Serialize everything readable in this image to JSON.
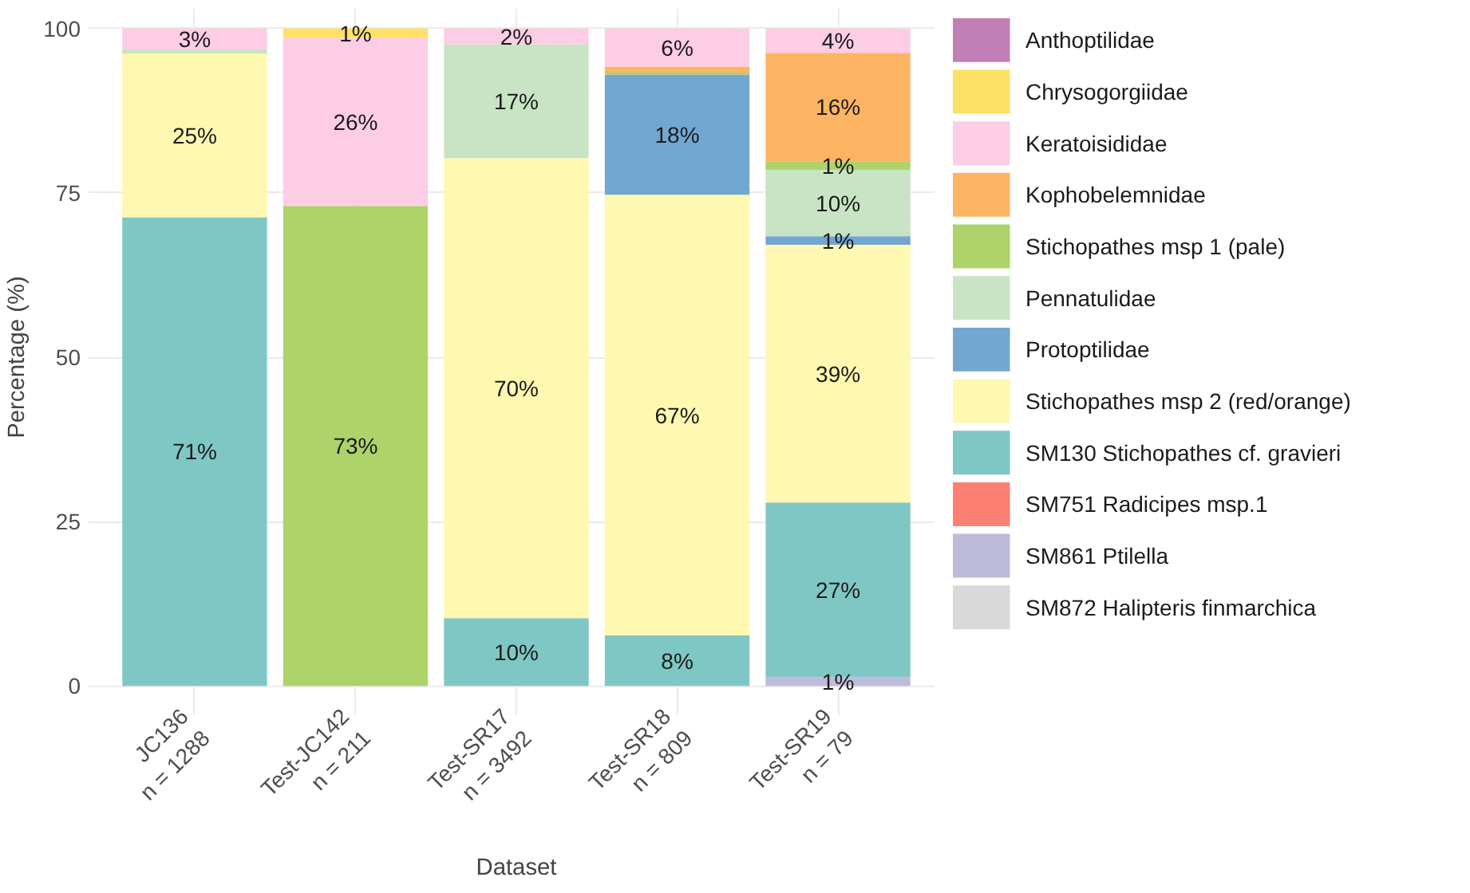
{
  "chart_data": {
    "type": "bar",
    "stacked": true,
    "xlabel": "Dataset",
    "ylabel": "Percentage (%)",
    "categories": [
      "JC136\nn = 1288",
      "Test-JC142\nn = 211",
      "Test-SR17\nn = 3492",
      "Test-SR18\nn = 809",
      "Test-SR19\nn = 79"
    ],
    "ylim": [
      -3,
      103
    ],
    "yticks": [
      0,
      25,
      50,
      75,
      100
    ],
    "grid": true,
    "legend": "right",
    "series": [
      {
        "name": "SM872 Halipteris finmarchica",
        "color": "#d9d9d9",
        "values": [
          null,
          null,
          null,
          null,
          null
        ]
      },
      {
        "name": "SM861 Ptilella",
        "color": "#bebada",
        "values": [
          null,
          null,
          null,
          null,
          1.3
        ],
        "value_labels": [
          null,
          null,
          null,
          null,
          "1%"
        ]
      },
      {
        "name": "SM751 Radicipes msp.1",
        "color": "#fb8072",
        "values": [
          null,
          null,
          null,
          null,
          null
        ]
      },
      {
        "name": "SM130 Stichopathes cf. gravieri",
        "color": "#7fc7c4",
        "values": [
          71.3,
          null,
          10.3,
          7.7,
          26.6
        ],
        "value_labels": [
          "71%",
          null,
          "10%",
          "8%",
          "27%"
        ]
      },
      {
        "name": "Stichopathes msp 2 (red/orange)",
        "color": "#fff8b0",
        "values": [
          24.9,
          null,
          70.0,
          67.0,
          39.2
        ],
        "value_labels": [
          "25%",
          null,
          "70%",
          "67%",
          "39%"
        ]
      },
      {
        "name": "Protoptilidae",
        "color": "#72a7d1",
        "values": [
          null,
          null,
          null,
          18.3,
          1.3
        ],
        "value_labels": [
          null,
          null,
          null,
          "18%",
          "1%"
        ]
      },
      {
        "name": "Pennatulidae",
        "color": "#c8e4c4",
        "values": [
          0.6,
          null,
          17.3,
          null,
          10.1
        ],
        "value_labels": [
          null,
          null,
          "17%",
          null,
          "10%"
        ]
      },
      {
        "name": "Stichopathes msp 1 (pale)",
        "color": "#aed36a",
        "values": [
          null,
          73.0,
          null,
          0.3,
          1.3
        ],
        "value_labels": [
          null,
          "73%",
          null,
          null,
          "1%"
        ]
      },
      {
        "name": "Kophobelemnidae",
        "color": "#fdb462",
        "values": [
          null,
          null,
          null,
          0.9,
          16.5
        ],
        "value_labels": [
          null,
          null,
          null,
          null,
          "16%"
        ]
      },
      {
        "name": "Keratoisididae",
        "color": "#fccde5",
        "values": [
          3.2,
          25.6,
          2.4,
          5.8,
          3.7
        ],
        "value_labels": [
          "3%",
          "26%",
          "2%",
          "6%",
          "4%"
        ]
      },
      {
        "name": "Chrysogorgiidae",
        "color": "#ffe066",
        "values": [
          null,
          1.4,
          null,
          null,
          null
        ],
        "value_labels": [
          null,
          "1%",
          null,
          null,
          null
        ]
      },
      {
        "name": "Anthoptilidae",
        "color": "#c17fb6",
        "values": [
          null,
          null,
          null,
          null,
          null
        ]
      }
    ]
  }
}
